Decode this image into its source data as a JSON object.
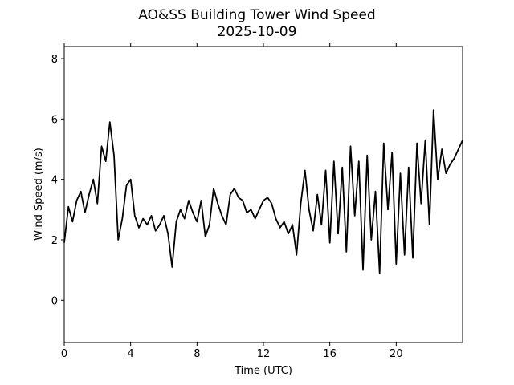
{
  "chart_data": {
    "type": "line",
    "title": "AO&SS Building Tower Wind Speed",
    "subtitle": "2025-10-09",
    "xlabel": "Time (UTC)",
    "ylabel": "Wind Speed (m/s)",
    "xlim": [
      0,
      24
    ],
    "ylim": [
      -1.4,
      8.4
    ],
    "x_ticks": [
      0,
      4,
      8,
      12,
      16,
      20
    ],
    "y_ticks": [
      0,
      2,
      4,
      6,
      8
    ],
    "grid": false,
    "line_color": "#000000",
    "series": [
      {
        "x": [
          0,
          0.25,
          0.5,
          0.75,
          1,
          1.25,
          1.5,
          1.75,
          2,
          2.25,
          2.5,
          2.75,
          3,
          3.25,
          3.5,
          3.75,
          4,
          4.25,
          4.5,
          4.75,
          5,
          5.25,
          5.5,
          5.75,
          6,
          6.25,
          6.5,
          6.75,
          7,
          7.25,
          7.5,
          7.75,
          8,
          8.25,
          8.5,
          8.75,
          9,
          9.25,
          9.5,
          9.75,
          10,
          10.25,
          10.5,
          10.75,
          11,
          11.25,
          11.5,
          11.75,
          12,
          12.25,
          12.5,
          12.75,
          13,
          13.25,
          13.5,
          13.75,
          14,
          14.25,
          14.5,
          14.75,
          15,
          15.25,
          15.5,
          15.75,
          16,
          16.25,
          16.5,
          16.75,
          17,
          17.25,
          17.5,
          17.75,
          18,
          18.25,
          18.5,
          18.75,
          19,
          19.25,
          19.5,
          19.75,
          20,
          20.25,
          20.5,
          20.75,
          21,
          21.25,
          21.5,
          21.75,
          22,
          22.25,
          22.5,
          22.75,
          23,
          23.25,
          23.5,
          23.75,
          24
        ],
        "y": [
          1.9,
          3.1,
          2.6,
          3.3,
          3.6,
          2.9,
          3.5,
          4.0,
          3.2,
          5.1,
          4.6,
          5.9,
          4.8,
          2.0,
          2.7,
          3.8,
          4.0,
          2.8,
          2.4,
          2.7,
          2.5,
          2.8,
          2.3,
          2.5,
          2.8,
          2.2,
          1.1,
          2.6,
          3.0,
          2.7,
          3.3,
          2.9,
          2.6,
          3.3,
          2.1,
          2.5,
          3.7,
          3.2,
          2.8,
          2.5,
          3.5,
          3.7,
          3.4,
          3.3,
          2.9,
          3.0,
          2.7,
          3.0,
          3.3,
          3.4,
          3.2,
          2.7,
          2.4,
          2.6,
          2.2,
          2.5,
          1.5,
          3.2,
          4.3,
          3.0,
          2.3,
          3.5,
          2.5,
          4.3,
          1.9,
          4.6,
          2.2,
          4.4,
          1.6,
          5.1,
          2.8,
          4.6,
          1.0,
          4.8,
          2.0,
          3.6,
          0.9,
          5.2,
          3.0,
          4.9,
          1.2,
          4.2,
          1.5,
          4.4,
          1.4,
          5.2,
          3.2,
          5.3,
          2.5,
          6.3,
          4.0,
          5.0,
          4.2,
          4.5,
          4.7,
          5.0,
          5.3
        ]
      }
    ]
  }
}
